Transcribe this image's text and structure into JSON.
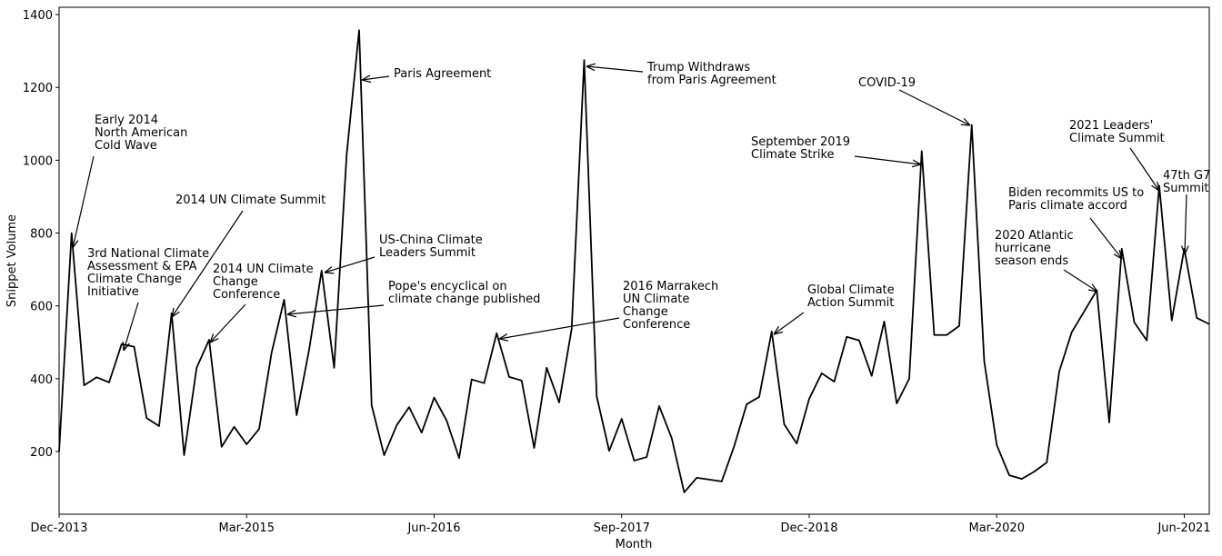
{
  "chart_data": {
    "type": "line",
    "x_label": "Month",
    "y_label": "Snippet Volume",
    "categories": [
      "Dec-2013",
      null,
      null,
      null,
      null,
      null,
      null,
      null,
      null,
      null,
      null,
      null,
      null,
      null,
      null,
      "Mar-2015",
      null,
      null,
      null,
      null,
      null,
      null,
      null,
      null,
      null,
      null,
      null,
      null,
      null,
      null,
      "Jun-2016",
      null,
      null,
      null,
      null,
      null,
      null,
      null,
      null,
      null,
      null,
      null,
      null,
      null,
      null,
      "Sep-2017",
      null,
      null,
      null,
      null,
      null,
      null,
      null,
      null,
      null,
      null,
      null,
      null,
      null,
      null,
      "Dec-2018",
      null,
      null,
      null,
      null,
      null,
      null,
      null,
      null,
      null,
      null,
      null,
      null,
      null,
      null,
      "Mar-2020",
      null,
      null,
      null,
      null,
      null,
      null,
      null,
      null,
      null,
      null,
      null,
      null,
      null,
      null,
      "Jun-2021",
      null,
      null
    ],
    "values": [
      200,
      800,
      382,
      404,
      390,
      495,
      488,
      292,
      270,
      580,
      190,
      430,
      507,
      213,
      268,
      220,
      262,
      472,
      617,
      300,
      480,
      697,
      430,
      1015,
      1357,
      327,
      190,
      272,
      322,
      252,
      348,
      285,
      182,
      398,
      388,
      525,
      405,
      395,
      210,
      430,
      335,
      537,
      1275,
      352,
      202,
      290,
      175,
      185,
      325,
      237,
      88,
      128,
      123,
      118,
      215,
      330,
      350,
      530,
      275,
      222,
      345,
      415,
      392,
      515,
      505,
      408,
      557,
      332,
      400,
      1025,
      520,
      520,
      545,
      1097,
      448,
      218,
      135,
      125,
      145,
      170,
      420,
      528,
      585,
      643,
      280,
      757,
      555,
      505,
      930,
      560,
      757,
      567,
      550
    ],
    "color": "#000000",
    "ylim": [
      28,
      1420
    ],
    "yticks": [
      200,
      400,
      600,
      800,
      1000,
      1200,
      1400
    ],
    "annotations": [
      "Early 2014\nNorth American\nCold Wave",
      "2014 UN Climate Summit",
      "3rd National Climate\nAssessment & EPA\nClimate Change\nInitiative",
      "2014 UN Climate\nChange\nConference",
      "US-China Climate\nLeaders Summit",
      "Pope's encyclical on\nclimate change published",
      "Paris Agreement",
      "Trump Withdraws\nfrom Paris Agreement",
      "2016 Marrakech\nUN Climate\nChange\nConference",
      "Global Climate\nAction Summit",
      "September 2019\nClimate Strike",
      "COVID-19",
      "2021 Leaders'\nClimate Summit",
      "Biden recommits US to\nParis climate accord",
      "2020 Atlantic\nhurricane\nseason ends",
      "47th G7\nSummit"
    ]
  }
}
